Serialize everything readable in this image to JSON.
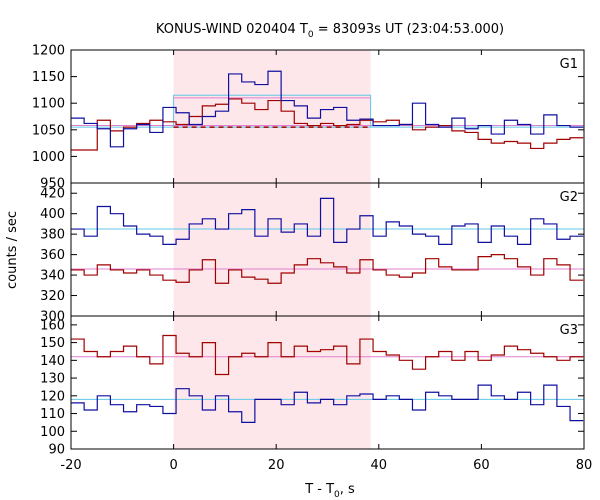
{
  "chart_data": {
    "type": "line",
    "title": "KONUS-WIND 020404 T",
    "title_sub": "0",
    "title_rest": " = 83093s UT (23:04:53.000)",
    "xlabel_main": "T - T",
    "xlabel_sub": "0",
    "xlabel_rest": ", s",
    "ylabel": "counts / sec",
    "xlim": [
      -20,
      80
    ],
    "x_ticks": [
      -20,
      0,
      20,
      40,
      60,
      80
    ],
    "shaded_interval": [
      0,
      38.4
    ],
    "colors": {
      "red_series": "#a00000",
      "blue_series": "#1010a0",
      "blue_background": "#60c8e8",
      "red_background": "#e080d0",
      "shade": "#fde7ea"
    },
    "bin_edges": [
      -20,
      -17.44,
      -14.88,
      -12.32,
      -9.76,
      -7.2,
      -4.64,
      -2.08,
      0.48,
      3.04,
      5.6,
      8.16,
      10.72,
      13.28,
      15.84,
      18.4,
      20.96,
      23.52,
      26.08,
      28.64,
      31.2,
      33.76,
      36.32,
      38.88,
      41.44,
      44.0,
      46.56,
      49.12,
      51.68,
      54.24,
      56.8,
      59.36,
      61.92,
      64.48,
      67.04,
      69.6,
      72.16,
      74.72,
      77.28,
      79.84
    ],
    "panels": [
      {
        "name": "G1",
        "ylim": [
          950,
          1200
        ],
        "y_ticks": [
          950,
          1000,
          1050,
          1100,
          1150,
          1200
        ],
        "red_values": [
          1012,
          1012,
          1068,
          1048,
          1055,
          1062,
          1068,
          1065,
          1060,
          1075,
          1095,
          1098,
          1108,
          1100,
          1088,
          1105,
          1085,
          1062,
          1058,
          1062,
          1058,
          1060,
          1068,
          1065,
          1068,
          1060,
          1050,
          1055,
          1058,
          1048,
          1045,
          1032,
          1025,
          1028,
          1025,
          1015,
          1025,
          1032,
          1035
        ],
        "blue_values": [
          1072,
          1062,
          1052,
          1018,
          1052,
          1060,
          1045,
          1092,
          1082,
          1060,
          1075,
          1085,
          1155,
          1140,
          1135,
          1160,
          1105,
          1095,
          1072,
          1088,
          1092,
          1068,
          1070,
          1058,
          1058,
          1060,
          1100,
          1060,
          1055,
          1072,
          1052,
          1058,
          1042,
          1068,
          1060,
          1042,
          1078,
          1058,
          1055
        ],
        "blue_background": {
          "value": 1055,
          "interval_value": 1115
        },
        "red_background": {
          "value": 1058,
          "interval_value": 1110,
          "dashed_value": 1055
        }
      },
      {
        "name": "G2",
        "ylim": [
          300,
          430
        ],
        "y_ticks": [
          300,
          320,
          340,
          360,
          380,
          400,
          420
        ],
        "red_values": [
          345,
          340,
          350,
          345,
          342,
          345,
          340,
          335,
          333,
          345,
          355,
          332,
          345,
          338,
          336,
          332,
          342,
          350,
          356,
          352,
          348,
          342,
          355,
          345,
          340,
          338,
          342,
          356,
          348,
          345,
          345,
          358,
          360,
          356,
          348,
          340,
          356,
          350,
          335
        ],
        "blue_values": [
          385,
          378,
          407,
          400,
          388,
          380,
          378,
          370,
          375,
          390,
          395,
          385,
          400,
          404,
          378,
          395,
          382,
          390,
          378,
          415,
          372,
          385,
          398,
          378,
          392,
          388,
          380,
          378,
          370,
          388,
          390,
          372,
          388,
          378,
          370,
          395,
          390,
          375,
          378
        ],
        "blue_background": {
          "value": 385
        },
        "red_background": {
          "value": 346
        }
      },
      {
        "name": "G3",
        "ylim": [
          90,
          165
        ],
        "y_ticks": [
          90,
          100,
          110,
          120,
          130,
          140,
          150,
          160
        ],
        "red_values": [
          152,
          145,
          142,
          145,
          148,
          142,
          138,
          154,
          144,
          142,
          150,
          132,
          142,
          144,
          142,
          150,
          142,
          148,
          145,
          146,
          148,
          138,
          152,
          145,
          143,
          140,
          135,
          142,
          145,
          140,
          145,
          140,
          143,
          148,
          146,
          144,
          142,
          140,
          142
        ],
        "blue_values": [
          116,
          112,
          120,
          115,
          111,
          115,
          114,
          110,
          124,
          120,
          112,
          120,
          111,
          105,
          118,
          118,
          115,
          122,
          116,
          118,
          115,
          120,
          121,
          118,
          120,
          118,
          112,
          122,
          120,
          118,
          118,
          126,
          120,
          118,
          122,
          115,
          126,
          114,
          106
        ],
        "blue_background": {
          "value": 118
        },
        "red_background": {
          "value": 142
        }
      }
    ]
  }
}
